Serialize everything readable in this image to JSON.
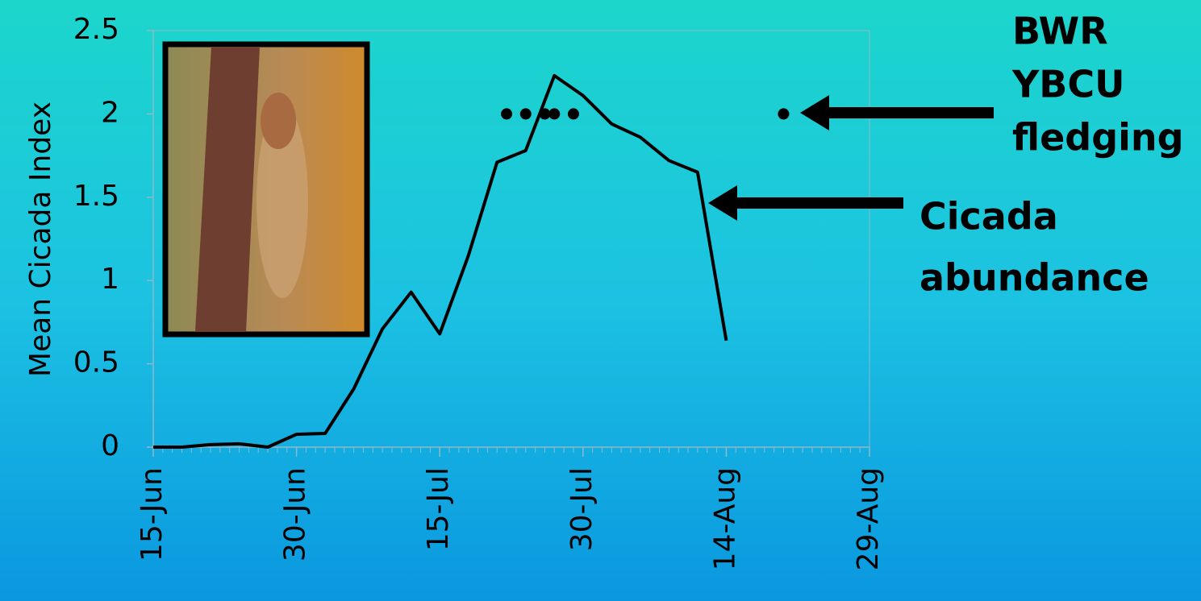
{
  "chart_data": {
    "type": "line",
    "y_label": "Mean Cicada Index",
    "x": [
      "15-Jun",
      "18-Jun",
      "21-Jun",
      "24-Jun",
      "27-Jun",
      "30-Jun",
      "3-Jul",
      "6-Jul",
      "9-Jul",
      "12-Jul",
      "15-Jul",
      "18-Jul",
      "21-Jul",
      "24-Jul",
      "27-Jul",
      "30-Jul",
      "2-Aug",
      "5-Aug",
      "8-Aug",
      "11-Aug",
      "14-Aug"
    ],
    "series": [
      {
        "color": "#000000",
        "values": [
          0,
          0,
          0.015,
          0.02,
          0,
          0.077,
          0.082,
          0.35,
          0.71,
          0.93,
          0.68,
          1.15,
          1.71,
          1.78,
          2.23,
          2.11,
          1.94,
          1.86,
          1.72,
          1.65,
          0.64
        ]
      }
    ],
    "points": {
      "color": "#000000",
      "x": [
        "22-Jul",
        "24-Jul",
        "26-Jul",
        "27-Jul",
        "29-Jul",
        "20-Aug"
      ],
      "values": [
        2,
        2,
        2,
        2,
        2,
        2
      ]
    },
    "xlim": [
      "15-Jun",
      "29-Aug"
    ],
    "xticks": [
      "15-Jun",
      "30-Jun",
      "15-Jul",
      "30-Jul",
      "14-Aug",
      "29-Aug"
    ],
    "ylim": [
      0,
      2.5
    ],
    "yticks": [
      0,
      0.5,
      1,
      1.5,
      2,
      2.5
    ],
    "annotations": [
      {
        "lines": [
          "BWR",
          "YBCU",
          "fledging"
        ]
      },
      {
        "lines": [
          "Cicada",
          "abundance"
        ]
      }
    ]
  }
}
